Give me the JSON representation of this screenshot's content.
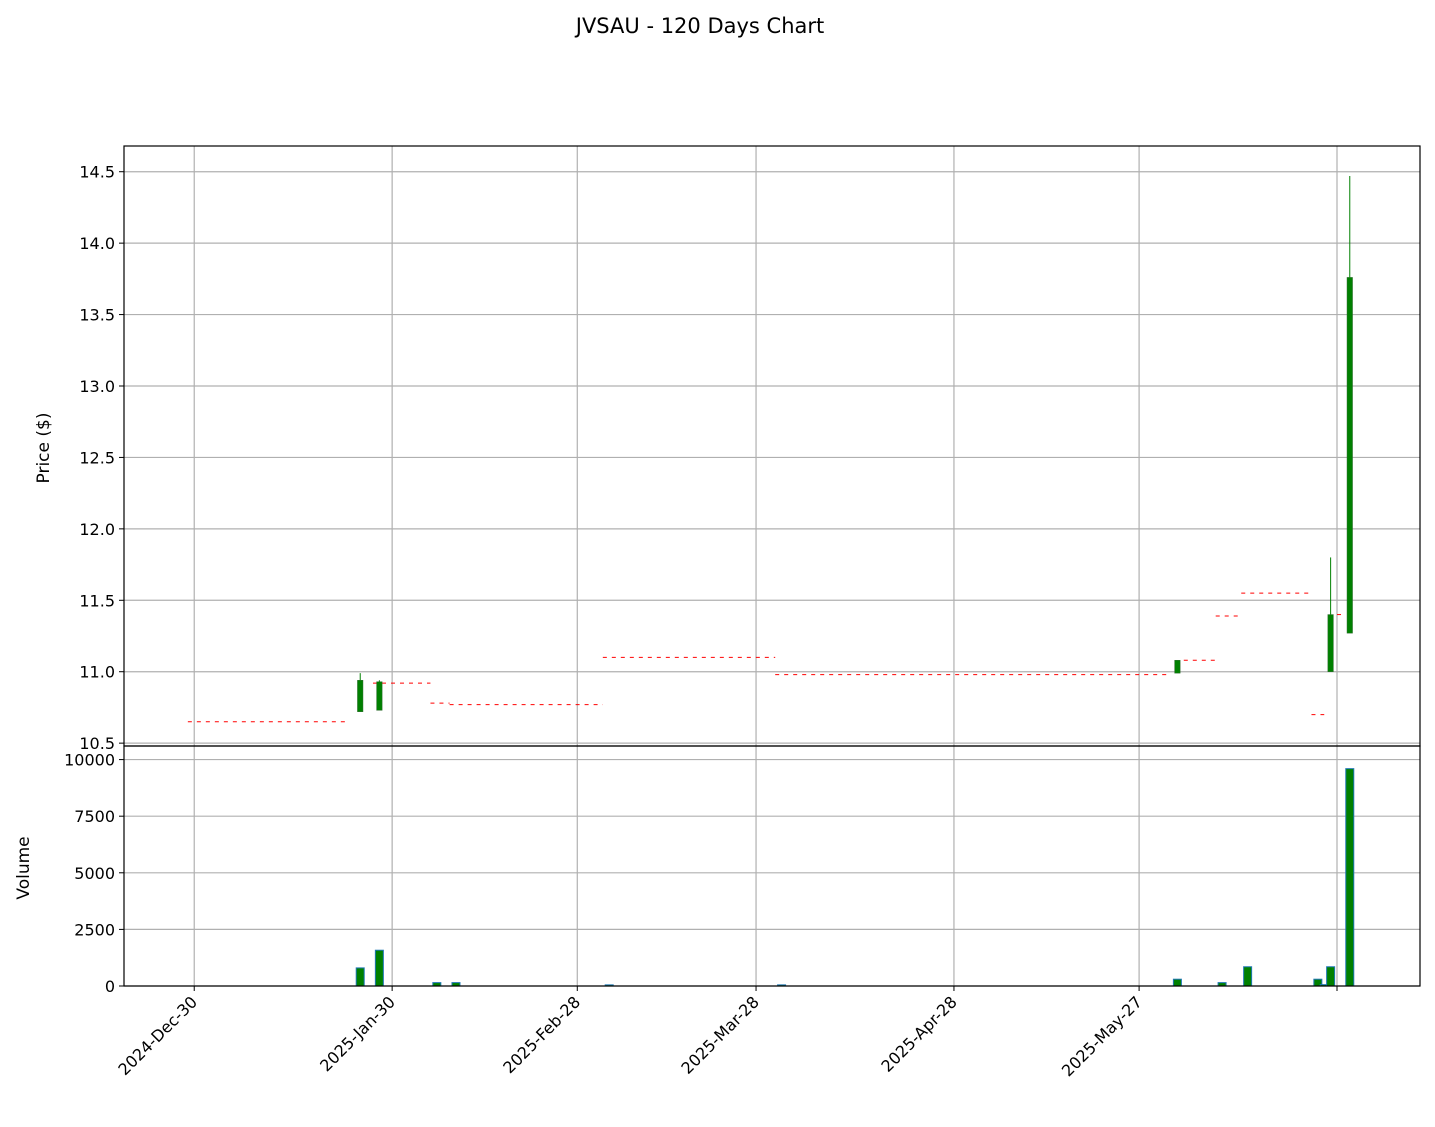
{
  "chart_data": {
    "type": "candlestick",
    "title": "JVSAU - 120 Days Chart",
    "price_panel": {
      "ylabel": "Price ($)",
      "ylim": [
        10.48,
        14.68
      ],
      "yticks": [
        10.5,
        11.0,
        11.5,
        12.0,
        12.5,
        13.0,
        13.5,
        14.0,
        14.5
      ],
      "ytick_labels": [
        "10.5",
        "11.0",
        "11.5",
        "12.0",
        "12.5",
        "13.0",
        "13.5",
        "14.0",
        "14.5"
      ],
      "grid": true
    },
    "volume_panel": {
      "ylabel": "Volume",
      "ylim": [
        0,
        10600
      ],
      "yticks": [
        0,
        2500,
        5000,
        7500,
        10000
      ],
      "ytick_labels": [
        "0",
        "2500",
        "5000",
        "7500",
        "10000"
      ],
      "grid": true
    },
    "x_axis": {
      "start": "2024-12-19",
      "end": "2025-07-10",
      "ticks": [
        "2024-12-30",
        "2025-01-30",
        "2025-02-28",
        "2025-03-28",
        "2025-04-28",
        "2025-05-27",
        "2025-06-27"
      ],
      "tick_labels": [
        "2024-Dec-30",
        "2025-Jan-30",
        "2025-Feb-28",
        "2025-Mar-28",
        "2025-Apr-28",
        "2025-May-27",
        ""
      ]
    },
    "candles": [
      {
        "date": "2025-01-25",
        "open": 10.72,
        "high": 10.99,
        "low": 10.72,
        "close": 10.94,
        "volume": 800
      },
      {
        "date": "2025-01-28",
        "open": 10.73,
        "high": 10.94,
        "low": 10.73,
        "close": 10.93,
        "volume": 1580
      },
      {
        "date": "2025-02-06",
        "open": 10.78,
        "high": 10.78,
        "low": 10.78,
        "close": 10.78,
        "volume": 150
      },
      {
        "date": "2025-02-09",
        "open": 10.77,
        "high": 10.77,
        "low": 10.77,
        "close": 10.77,
        "volume": 150
      },
      {
        "date": "2025-03-05",
        "open": 11.1,
        "high": 11.1,
        "low": 11.1,
        "close": 11.1,
        "volume": 50
      },
      {
        "date": "2025-04-01",
        "open": 10.98,
        "high": 10.98,
        "low": 10.98,
        "close": 10.98,
        "volume": 50
      },
      {
        "date": "2025-06-02",
        "open": 10.99,
        "high": 11.08,
        "low": 10.99,
        "close": 11.08,
        "volume": 300
      },
      {
        "date": "2025-06-09",
        "open": 11.39,
        "high": 11.39,
        "low": 11.39,
        "close": 11.39,
        "volume": 150
      },
      {
        "date": "2025-06-13",
        "open": 11.55,
        "high": 11.55,
        "low": 11.55,
        "close": 11.55,
        "volume": 850
      },
      {
        "date": "2025-06-24",
        "open": 10.7,
        "high": 10.7,
        "low": 10.7,
        "close": 10.7,
        "volume": 300
      },
      {
        "date": "2025-06-25",
        "open": 10.7,
        "high": 10.7,
        "low": 10.7,
        "close": 10.7,
        "volume": 60
      },
      {
        "date": "2025-06-26",
        "open": 11.0,
        "high": 11.8,
        "low": 11.0,
        "close": 11.4,
        "volume": 850
      },
      {
        "date": "2025-06-29",
        "open": 11.27,
        "high": 14.47,
        "low": 11.27,
        "close": 13.76,
        "volume": 9600
      }
    ],
    "reference_lines": [
      {
        "start": "2024-12-29",
        "end": "2025-01-23",
        "value": 10.65
      },
      {
        "start": "2025-01-27",
        "end": "2025-02-05",
        "value": 10.92
      },
      {
        "start": "2025-02-05",
        "end": "2025-02-08",
        "value": 10.78
      },
      {
        "start": "2025-02-08",
        "end": "2025-03-04",
        "value": 10.77
      },
      {
        "start": "2025-03-04",
        "end": "2025-03-31",
        "value": 11.1
      },
      {
        "start": "2025-03-31",
        "end": "2025-06-01",
        "value": 10.98
      },
      {
        "start": "2025-06-03",
        "end": "2025-06-08",
        "value": 11.08
      },
      {
        "start": "2025-06-08",
        "end": "2025-06-12",
        "value": 11.39
      },
      {
        "start": "2025-06-12",
        "end": "2025-06-23",
        "value": 11.55
      },
      {
        "start": "2025-06-23",
        "end": "2025-06-25",
        "value": 10.7
      },
      {
        "start": "2025-06-27",
        "end": "2025-06-28",
        "value": 11.4
      }
    ],
    "colors": {
      "up": "#008000",
      "down": "#ff0000",
      "volume_edge": "#1f77b4",
      "reference_line": "#ff0000",
      "grid": "#b0b0b0"
    }
  }
}
